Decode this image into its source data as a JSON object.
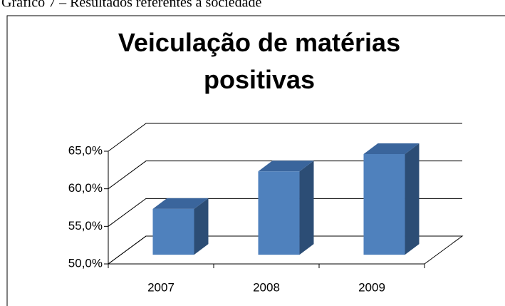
{
  "caption": "Gráfico 7 – Resultados referentes à sociedade",
  "chart_data": {
    "type": "bar3d",
    "title": "Veiculação de matérias positivas",
    "categories": [
      "2007",
      "2008",
      "2009"
    ],
    "values": [
      56.1,
      61.1,
      63.4
    ],
    "color": "#4f81bd",
    "ylim": [
      50,
      65
    ],
    "yticks": [
      {
        "value": 50,
        "label": "50,0%"
      },
      {
        "value": 55,
        "label": "55,0%"
      },
      {
        "value": 60,
        "label": "60,0%"
      },
      {
        "value": 65,
        "label": "65,0%"
      }
    ],
    "grid": true
  }
}
